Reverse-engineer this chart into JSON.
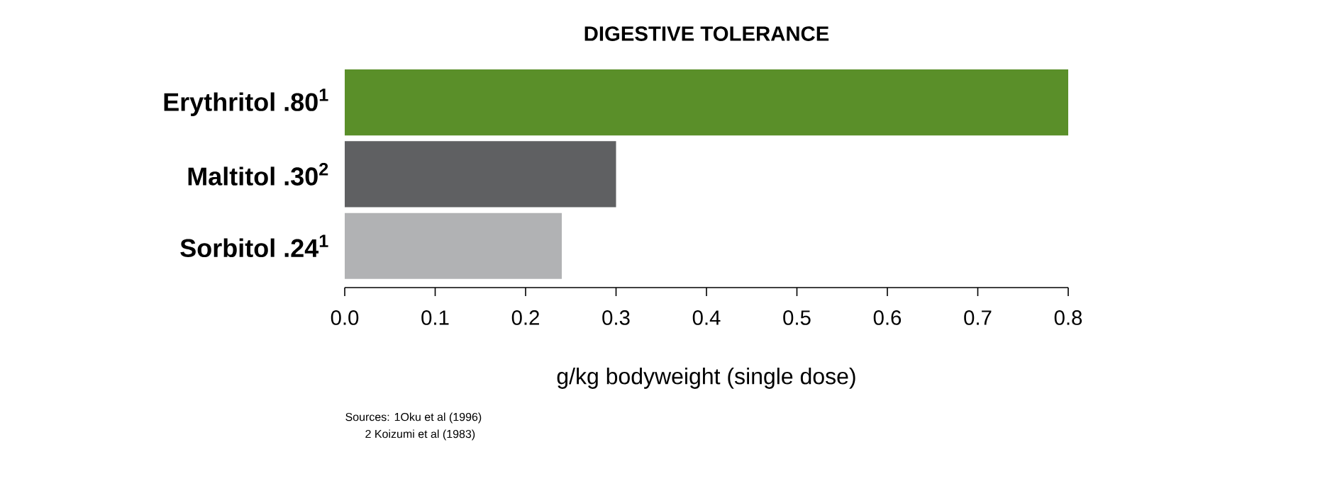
{
  "chart_data": {
    "type": "bar",
    "orientation": "horizontal",
    "title": "DIGESTIVE TOLERANCE",
    "categories": [
      "Erythritol .80$^{1}$",
      "Maltitol .30$^{2}$",
      "Sorbitol .24$^{1}$"
    ],
    "values": [
      0.8,
      0.3,
      0.24
    ],
    "colors": [
      "#5a8f29",
      "#5f6062",
      "#b1b2b4"
    ],
    "xlabel": "g/kg bodyweight (single dose)",
    "xlim": [
      0,
      0.8
    ],
    "xticks": [
      {
        "value": 0,
        "label": "0.0"
      },
      0.1,
      0.2,
      0.3,
      0.4,
      0.5,
      0.6,
      0.7,
      0.8
    ],
    "annotations": [
      "Sources: 1Oku et al (1996)",
      "2 Koizumi et al (1983)"
    ]
  }
}
